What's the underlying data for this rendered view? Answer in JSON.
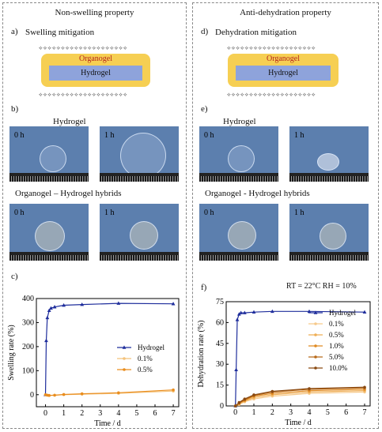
{
  "left": {
    "title": "Non-swelling property",
    "a_label": "a)",
    "a_text": "Swelling mitigation",
    "organogel": "Organogel",
    "hydrogel": "Hydrogel",
    "b_label": "b)",
    "b_top": "Hydrogel",
    "b_bottom": "Organogel – Hydrogel  hybrids",
    "t0": "0 h",
    "t1": "1 h",
    "c_label": "c)"
  },
  "right": {
    "title": "Anti-dehydration property",
    "d_label": "d)",
    "d_text": "Dehydration mitigation",
    "organogel": "Organogel",
    "hydrogel": "Hydrogel",
    "e_label": "e)",
    "e_top": "Hydrogel",
    "e_bottom": "Organogel - Hydrogel hybrids",
    "t0": "0 h",
    "t1": "1 h",
    "f_label": "f)",
    "condition": "RT = 22°C RH = 10%"
  },
  "chart_data": [
    {
      "type": "line",
      "xlabel": "Time / d",
      "ylabel": "Swelling rate (%)",
      "xlim": [
        -0.5,
        7.3
      ],
      "ylim": [
        -50,
        400
      ],
      "xticks": [
        0,
        1,
        2,
        3,
        4,
        5,
        6,
        7
      ],
      "yticks": [
        0,
        100,
        200,
        300,
        400
      ],
      "legend": "right",
      "series": [
        {
          "name": "Hydrogel",
          "color": "#1f2e9c",
          "marker": "tri",
          "x": [
            0,
            0.04,
            0.1,
            0.2,
            0.3,
            0.5,
            1,
            2,
            4,
            7
          ],
          "y": [
            0,
            225,
            320,
            350,
            360,
            365,
            372,
            375,
            380,
            378
          ]
        },
        {
          "name": "0.1%",
          "color": "#f4c27a",
          "marker": "dot",
          "x": [
            0,
            0.1,
            0.2,
            0.5,
            1,
            2,
            4,
            7
          ],
          "y": [
            0,
            -2,
            -3,
            -2,
            0,
            2,
            6,
            15
          ]
        },
        {
          "name": "0.5%",
          "color": "#e98d1e",
          "marker": "dot",
          "x": [
            0,
            0.1,
            0.2,
            0.5,
            1,
            2,
            4,
            7
          ],
          "y": [
            0,
            -2,
            -3,
            -2,
            1,
            4,
            8,
            20
          ]
        }
      ]
    },
    {
      "type": "line",
      "xlabel": "Time / d",
      "ylabel": "Dehydration rate (%)",
      "xlim": [
        -0.5,
        7.3
      ],
      "ylim": [
        0,
        75
      ],
      "xticks": [
        0,
        1,
        2,
        3,
        4,
        5,
        6,
        7
      ],
      "yticks": [
        0,
        15,
        30,
        45,
        60,
        75
      ],
      "legend": "right",
      "series": [
        {
          "name": "Hydrogel",
          "color": "#1f2e9c",
          "marker": "tri",
          "x": [
            0,
            0.04,
            0.1,
            0.2,
            0.3,
            0.5,
            1,
            2,
            4,
            7
          ],
          "y": [
            0,
            26,
            62,
            66,
            67,
            67,
            67.5,
            68,
            68,
            67.5
          ]
        },
        {
          "name": "0.1%",
          "color": "#f6c98b",
          "marker": "dot",
          "x": [
            0,
            0.2,
            0.5,
            1,
            2,
            4,
            7
          ],
          "y": [
            0,
            1,
            3,
            5,
            7,
            9,
            10
          ]
        },
        {
          "name": "0.5%",
          "color": "#efae55",
          "marker": "dot",
          "x": [
            0,
            0.2,
            0.5,
            1,
            2,
            4,
            7
          ],
          "y": [
            0,
            1.5,
            3.5,
            6,
            8,
            10,
            11
          ]
        },
        {
          "name": "1.0%",
          "color": "#e08a22",
          "marker": "dot",
          "x": [
            0,
            0.2,
            0.5,
            1,
            2,
            4,
            7
          ],
          "y": [
            0,
            2,
            4,
            7,
            9,
            11,
            12
          ]
        },
        {
          "name": "5.0%",
          "color": "#b86a1a",
          "marker": "dot",
          "x": [
            0,
            0.2,
            0.5,
            1,
            2,
            4,
            7
          ],
          "y": [
            0,
            2,
            4.5,
            7.5,
            10,
            12,
            13
          ]
        },
        {
          "name": "10.0%",
          "color": "#8a4a12",
          "marker": "dot",
          "x": [
            0,
            0.2,
            0.5,
            1,
            2,
            4,
            7
          ],
          "y": [
            0,
            2.5,
            5,
            8,
            10.5,
            12.5,
            13.5
          ]
        }
      ]
    }
  ]
}
